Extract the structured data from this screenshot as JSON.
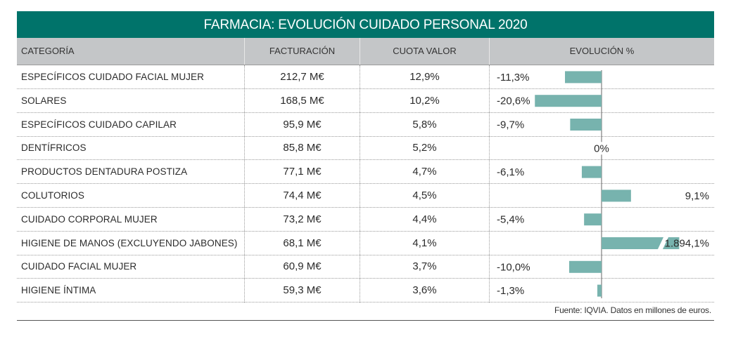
{
  "title": "FARMACIA: EVOLUCIÓN CUIDADO PERSONAL 2020",
  "headers": {
    "category": "CATEGORÍA",
    "revenue": "FACTURACIÓN",
    "share": "CUOTA VALOR",
    "evolution": "EVOLUCIÓN %"
  },
  "rows": [
    {
      "category": "ESPECÍFICOS CUIDADO FACIAL MUJER",
      "revenue": "212,7 M€",
      "share": "12,9%",
      "evolution_label": "-11,3%"
    },
    {
      "category": "SOLARES",
      "revenue": "168,5 M€",
      "share": "10,2%",
      "evolution_label": "-20,6%"
    },
    {
      "category": "ESPECÍFICOS CUIDADO CAPILAR",
      "revenue": "95,9 M€",
      "share": "5,8%",
      "evolution_label": "-9,7%"
    },
    {
      "category": "DENTÍFRICOS",
      "revenue": "85,8 M€",
      "share": "5,2%",
      "evolution_label": "0%"
    },
    {
      "category": "PRODUCTOS DENTADURA POSTIZA",
      "revenue": "77,1 M€",
      "share": "4,7%",
      "evolution_label": "-6,1%"
    },
    {
      "category": "COLUTORIOS",
      "revenue": "74,4 M€",
      "share": "4,5%",
      "evolution_label": "9,1%"
    },
    {
      "category": "CUIDADO CORPORAL MUJER",
      "revenue": "73,2 M€",
      "share": "4,4%",
      "evolution_label": "-5,4%"
    },
    {
      "category": "HIGIENE DE MANOS (EXCLUYENDO JABONES)",
      "revenue": "68,1 M€",
      "share": "4,1%",
      "evolution_label": "1.894,1%"
    },
    {
      "category": "CUIDADO FACIAL MUJER",
      "revenue": "60,9 M€",
      "share": "3,7%",
      "evolution_label": "-10,0%"
    },
    {
      "category": "HIGIENE ÍNTIMA",
      "revenue": "59,3 M€",
      "share": "3,6%",
      "evolution_label": "-1,3%"
    }
  ],
  "source": "Fuente: IQVIA. Datos en millones de euros.",
  "colors": {
    "header_band": "#00736a",
    "bar": "#77b3ae",
    "header_row": "#c4c6c8"
  },
  "chart_data": {
    "type": "bar",
    "orientation": "horizontal",
    "title": "EVOLUCIÓN %",
    "categories": [
      "ESPECÍFICOS CUIDADO FACIAL MUJER",
      "SOLARES",
      "ESPECÍFICOS CUIDADO CAPILAR",
      "DENTÍFRICOS",
      "PRODUCTOS DENTADURA POSTIZA",
      "COLUTORIOS",
      "CUIDADO CORPORAL MUJER",
      "HIGIENE DE MANOS (EXCLUYENDO JABONES)",
      "CUIDADO FACIAL MUJER",
      "HIGIENE ÍNTIMA"
    ],
    "values": [
      -11.3,
      -20.6,
      -9.7,
      0,
      -6.1,
      9.1,
      -5.4,
      1894.1,
      -10.0,
      -1.3
    ],
    "axis_break": {
      "category": "HIGIENE DE MANOS (EXCLUYENDO JABONES)",
      "display_cap": 24
    },
    "xlabel": "",
    "ylabel": "Evolución %"
  }
}
